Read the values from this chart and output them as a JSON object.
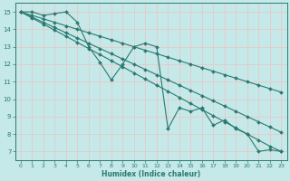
{
  "xlabel": "Humidex (Indice chaleur)",
  "ylabel": "",
  "xlim": [
    -0.5,
    23.5
  ],
  "ylim": [
    6.5,
    15.5
  ],
  "xticks": [
    0,
    1,
    2,
    3,
    4,
    5,
    6,
    7,
    8,
    9,
    10,
    11,
    12,
    13,
    14,
    15,
    16,
    17,
    18,
    19,
    20,
    21,
    22,
    23
  ],
  "yticks": [
    7,
    8,
    9,
    10,
    11,
    12,
    13,
    14,
    15
  ],
  "bg_color": "#c5e8e8",
  "grid_color": "#dce8e8",
  "line_color": "#2a7a72",
  "markersize": 2.0,
  "linewidth": 0.8,
  "series": [
    {
      "x": [
        0,
        1,
        2,
        3,
        4,
        5,
        6,
        7,
        8,
        9,
        10,
        11,
        12,
        13,
        14,
        15,
        16,
        17,
        18,
        19,
        20,
        21,
        22,
        23
      ],
      "y": [
        15.0,
        14.65,
        14.3,
        13.95,
        13.6,
        13.25,
        12.9,
        12.55,
        12.2,
        11.85,
        11.5,
        11.15,
        10.8,
        10.45,
        10.1,
        9.75,
        9.4,
        9.05,
        8.7,
        8.35,
        8.0,
        7.65,
        7.3,
        7.0
      ]
    },
    {
      "x": [
        0,
        1,
        2,
        3,
        4,
        5,
        6,
        7,
        8,
        9,
        10,
        11,
        12,
        13,
        14,
        15,
        16,
        17,
        18,
        19,
        20,
        21,
        22,
        23
      ],
      "y": [
        15.0,
        14.7,
        14.4,
        14.1,
        13.8,
        13.5,
        13.2,
        12.9,
        12.6,
        12.3,
        12.0,
        11.7,
        11.4,
        11.1,
        10.8,
        10.5,
        10.2,
        9.9,
        9.6,
        9.3,
        9.0,
        8.7,
        8.4,
        8.1
      ]
    },
    {
      "x": [
        0,
        1,
        2,
        3,
        4,
        5,
        6,
        7,
        8,
        9,
        10,
        11,
        12,
        13,
        14,
        15,
        16,
        17,
        18,
        19,
        20,
        21,
        22,
        23
      ],
      "y": [
        15.0,
        14.8,
        14.6,
        14.4,
        14.2,
        14.0,
        13.8,
        13.6,
        13.4,
        13.2,
        13.0,
        12.8,
        12.6,
        12.4,
        12.2,
        12.0,
        11.8,
        11.6,
        11.4,
        11.2,
        11.0,
        10.8,
        10.6,
        10.4
      ]
    },
    {
      "x": [
        0,
        1,
        2,
        3,
        4,
        5,
        6,
        7,
        8,
        9,
        10,
        11,
        12,
        13,
        14,
        15,
        16,
        17,
        18,
        19,
        20,
        21,
        22,
        23
      ],
      "y": [
        15.0,
        15.0,
        14.8,
        14.9,
        15.0,
        14.4,
        13.0,
        12.1,
        11.1,
        12.0,
        13.0,
        13.2,
        13.0,
        8.3,
        9.5,
        9.3,
        9.5,
        8.5,
        8.8,
        8.3,
        8.0,
        7.0,
        7.1,
        7.0
      ]
    }
  ]
}
